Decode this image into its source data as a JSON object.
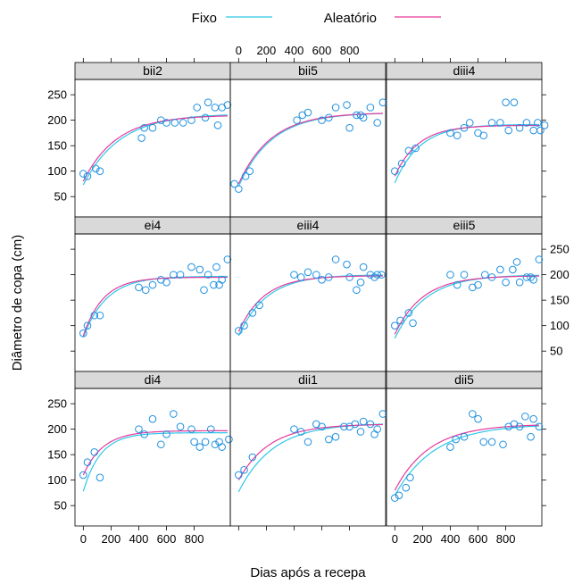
{
  "chart_data": {
    "type": "scatter",
    "xlabel": "Dias após a recepa",
    "ylabel": "Diâmetro de copa (cm)",
    "xlim": [
      -60,
      1060
    ],
    "ylim": [
      10,
      280
    ],
    "x_ticks": [
      0,
      200,
      400,
      600,
      800
    ],
    "y_ticks": [
      50,
      100,
      150,
      200,
      250
    ],
    "legend": {
      "position": "top",
      "entries": [
        {
          "name": "Fixo",
          "color": "#2ec7e8"
        },
        {
          "name": "Aleatório",
          "color": "#e6399b"
        }
      ]
    },
    "point_color": "#1e90e0",
    "panels": [
      {
        "name": "bii2",
        "points": [
          [
            0,
            95
          ],
          [
            30,
            90
          ],
          [
            90,
            105
          ],
          [
            120,
            100
          ],
          [
            420,
            165
          ],
          [
            440,
            185
          ],
          [
            500,
            185
          ],
          [
            560,
            200
          ],
          [
            600,
            195
          ],
          [
            660,
            195
          ],
          [
            720,
            195
          ],
          [
            780,
            200
          ],
          [
            820,
            225
          ],
          [
            880,
            205
          ],
          [
            900,
            235
          ],
          [
            950,
            225
          ],
          [
            970,
            190
          ],
          [
            1000,
            225
          ],
          [
            1040,
            230
          ]
        ],
        "fixo": {
          "a": 213,
          "b": 140,
          "k": 0.0038
        },
        "aleatorio": {
          "a": 210,
          "b": 130,
          "k": 0.0042
        }
      },
      {
        "name": "bii5",
        "points": [
          [
            -30,
            75
          ],
          [
            0,
            65
          ],
          [
            50,
            90
          ],
          [
            80,
            100
          ],
          [
            420,
            200
          ],
          [
            460,
            210
          ],
          [
            500,
            215
          ],
          [
            600,
            200
          ],
          [
            650,
            205
          ],
          [
            700,
            225
          ],
          [
            780,
            230
          ],
          [
            800,
            185
          ],
          [
            850,
            210
          ],
          [
            880,
            210
          ],
          [
            900,
            205
          ],
          [
            950,
            225
          ],
          [
            1000,
            195
          ],
          [
            1040,
            235
          ]
        ],
        "fixo": {
          "a": 215,
          "b": 145,
          "k": 0.0042
        },
        "aleatorio": {
          "a": 215,
          "b": 140,
          "k": 0.0043
        }
      },
      {
        "name": "diii4",
        "points": [
          [
            0,
            100
          ],
          [
            50,
            115
          ],
          [
            100,
            140
          ],
          [
            150,
            145
          ],
          [
            400,
            175
          ],
          [
            450,
            170
          ],
          [
            500,
            185
          ],
          [
            540,
            195
          ],
          [
            600,
            175
          ],
          [
            640,
            170
          ],
          [
            700,
            195
          ],
          [
            760,
            195
          ],
          [
            800,
            235
          ],
          [
            820,
            180
          ],
          [
            860,
            235
          ],
          [
            900,
            185
          ],
          [
            950,
            195
          ],
          [
            1000,
            180
          ],
          [
            1030,
            195
          ],
          [
            1050,
            180
          ],
          [
            1080,
            190
          ]
        ],
        "fixo": {
          "a": 192,
          "b": 115,
          "k": 0.0055
        },
        "aleatorio": {
          "a": 190,
          "b": 100,
          "k": 0.006
        }
      },
      {
        "name": "ei4",
        "points": [
          [
            0,
            85
          ],
          [
            30,
            100
          ],
          [
            80,
            120
          ],
          [
            120,
            120
          ],
          [
            400,
            175
          ],
          [
            450,
            170
          ],
          [
            500,
            180
          ],
          [
            560,
            190
          ],
          [
            600,
            185
          ],
          [
            650,
            200
          ],
          [
            700,
            200
          ],
          [
            780,
            215
          ],
          [
            840,
            210
          ],
          [
            870,
            170
          ],
          [
            900,
            200
          ],
          [
            940,
            180
          ],
          [
            960,
            215
          ],
          [
            980,
            180
          ],
          [
            1000,
            190
          ],
          [
            1040,
            230
          ]
        ],
        "fixo": {
          "a": 197,
          "b": 120,
          "k": 0.006
        },
        "aleatorio": {
          "a": 195,
          "b": 115,
          "k": 0.007
        }
      },
      {
        "name": "eiii4",
        "points": [
          [
            0,
            90
          ],
          [
            40,
            100
          ],
          [
            100,
            125
          ],
          [
            150,
            140
          ],
          [
            400,
            200
          ],
          [
            450,
            195
          ],
          [
            500,
            205
          ],
          [
            560,
            200
          ],
          [
            600,
            190
          ],
          [
            650,
            195
          ],
          [
            700,
            230
          ],
          [
            780,
            220
          ],
          [
            800,
            195
          ],
          [
            850,
            170
          ],
          [
            880,
            185
          ],
          [
            900,
            215
          ],
          [
            950,
            200
          ],
          [
            980,
            195
          ],
          [
            1000,
            200
          ],
          [
            1030,
            200
          ]
        ],
        "fixo": {
          "a": 200,
          "b": 120,
          "k": 0.005
        },
        "aleatorio": {
          "a": 198,
          "b": 110,
          "k": 0.0055
        }
      },
      {
        "name": "eiii5",
        "points": [
          [
            0,
            100
          ],
          [
            40,
            110
          ],
          [
            100,
            125
          ],
          [
            130,
            105
          ],
          [
            400,
            200
          ],
          [
            450,
            180
          ],
          [
            500,
            200
          ],
          [
            560,
            175
          ],
          [
            600,
            180
          ],
          [
            650,
            200
          ],
          [
            700,
            195
          ],
          [
            760,
            210
          ],
          [
            800,
            185
          ],
          [
            850,
            210
          ],
          [
            880,
            225
          ],
          [
            900,
            185
          ],
          [
            950,
            195
          ],
          [
            980,
            195
          ],
          [
            1000,
            190
          ],
          [
            1040,
            230
          ]
        ],
        "fixo": {
          "a": 200,
          "b": 125,
          "k": 0.0045
        },
        "aleatorio": {
          "a": 198,
          "b": 115,
          "k": 0.005
        }
      },
      {
        "name": "di4",
        "points": [
          [
            0,
            110
          ],
          [
            30,
            135
          ],
          [
            80,
            155
          ],
          [
            120,
            105
          ],
          [
            400,
            200
          ],
          [
            440,
            190
          ],
          [
            500,
            220
          ],
          [
            560,
            170
          ],
          [
            600,
            190
          ],
          [
            650,
            230
          ],
          [
            700,
            205
          ],
          [
            780,
            200
          ],
          [
            800,
            175
          ],
          [
            840,
            165
          ],
          [
            880,
            175
          ],
          [
            920,
            200
          ],
          [
            950,
            170
          ],
          [
            980,
            175
          ],
          [
            1000,
            165
          ],
          [
            1050,
            180
          ]
        ],
        "fixo": {
          "a": 193,
          "b": 115,
          "k": 0.008
        },
        "aleatorio": {
          "a": 197,
          "b": 87,
          "k": 0.007
        }
      },
      {
        "name": "dii1",
        "points": [
          [
            0,
            110
          ],
          [
            40,
            120
          ],
          [
            100,
            145
          ],
          [
            400,
            200
          ],
          [
            450,
            195
          ],
          [
            500,
            175
          ],
          [
            560,
            210
          ],
          [
            600,
            205
          ],
          [
            650,
            180
          ],
          [
            700,
            185
          ],
          [
            760,
            205
          ],
          [
            800,
            205
          ],
          [
            840,
            210
          ],
          [
            880,
            195
          ],
          [
            900,
            215
          ],
          [
            950,
            210
          ],
          [
            980,
            190
          ],
          [
            1000,
            200
          ],
          [
            1040,
            230
          ]
        ],
        "fixo": {
          "a": 212,
          "b": 135,
          "k": 0.004
        },
        "aleatorio": {
          "a": 210,
          "b": 110,
          "k": 0.0045
        }
      },
      {
        "name": "dii5",
        "points": [
          [
            0,
            65
          ],
          [
            30,
            70
          ],
          [
            80,
            85
          ],
          [
            110,
            105
          ],
          [
            400,
            165
          ],
          [
            440,
            180
          ],
          [
            500,
            185
          ],
          [
            560,
            230
          ],
          [
            600,
            220
          ],
          [
            640,
            175
          ],
          [
            700,
            175
          ],
          [
            780,
            170
          ],
          [
            820,
            205
          ],
          [
            860,
            210
          ],
          [
            900,
            205
          ],
          [
            940,
            225
          ],
          [
            980,
            185
          ],
          [
            1000,
            220
          ],
          [
            1040,
            205
          ]
        ],
        "fixo": {
          "a": 210,
          "b": 140,
          "k": 0.0035
        },
        "aleatorio": {
          "a": 210,
          "b": 130,
          "k": 0.004
        }
      }
    ]
  }
}
